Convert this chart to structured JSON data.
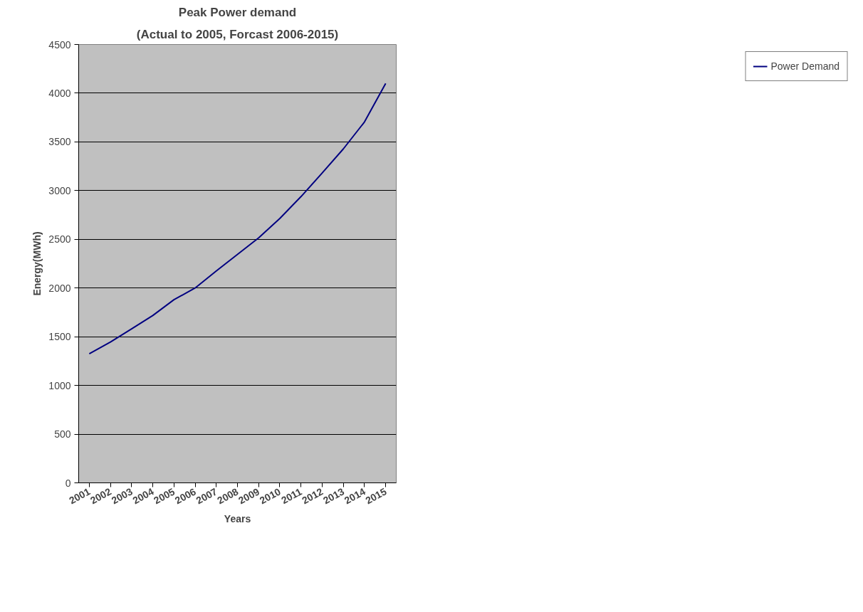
{
  "chart_data": {
    "type": "line",
    "title": "Peak Power demand",
    "subtitle": "(Actual to 2005, Forcast 2006-2015)",
    "xlabel": "Years",
    "ylabel": "Energy(MWh)",
    "categories": [
      "2001",
      "2002",
      "2003",
      "2004",
      "2005",
      "2006",
      "2007",
      "2008",
      "2009",
      "2010",
      "2011",
      "2012",
      "2013",
      "2014",
      "2015"
    ],
    "series": [
      {
        "name": "Power Demand",
        "color": "#000080",
        "values": [
          1325,
          1446,
          1580,
          1718,
          1880,
          2000,
          2175,
          2345,
          2515,
          2714,
          2938,
          3180,
          3428,
          3705,
          4100
        ]
      }
    ],
    "ylim": [
      0,
      4500
    ],
    "yticks": [
      0,
      500,
      1000,
      1500,
      2000,
      2500,
      3000,
      3500,
      4000,
      4500
    ],
    "grid": "y",
    "legend": "right",
    "marker": "none",
    "line_style": "solid"
  }
}
